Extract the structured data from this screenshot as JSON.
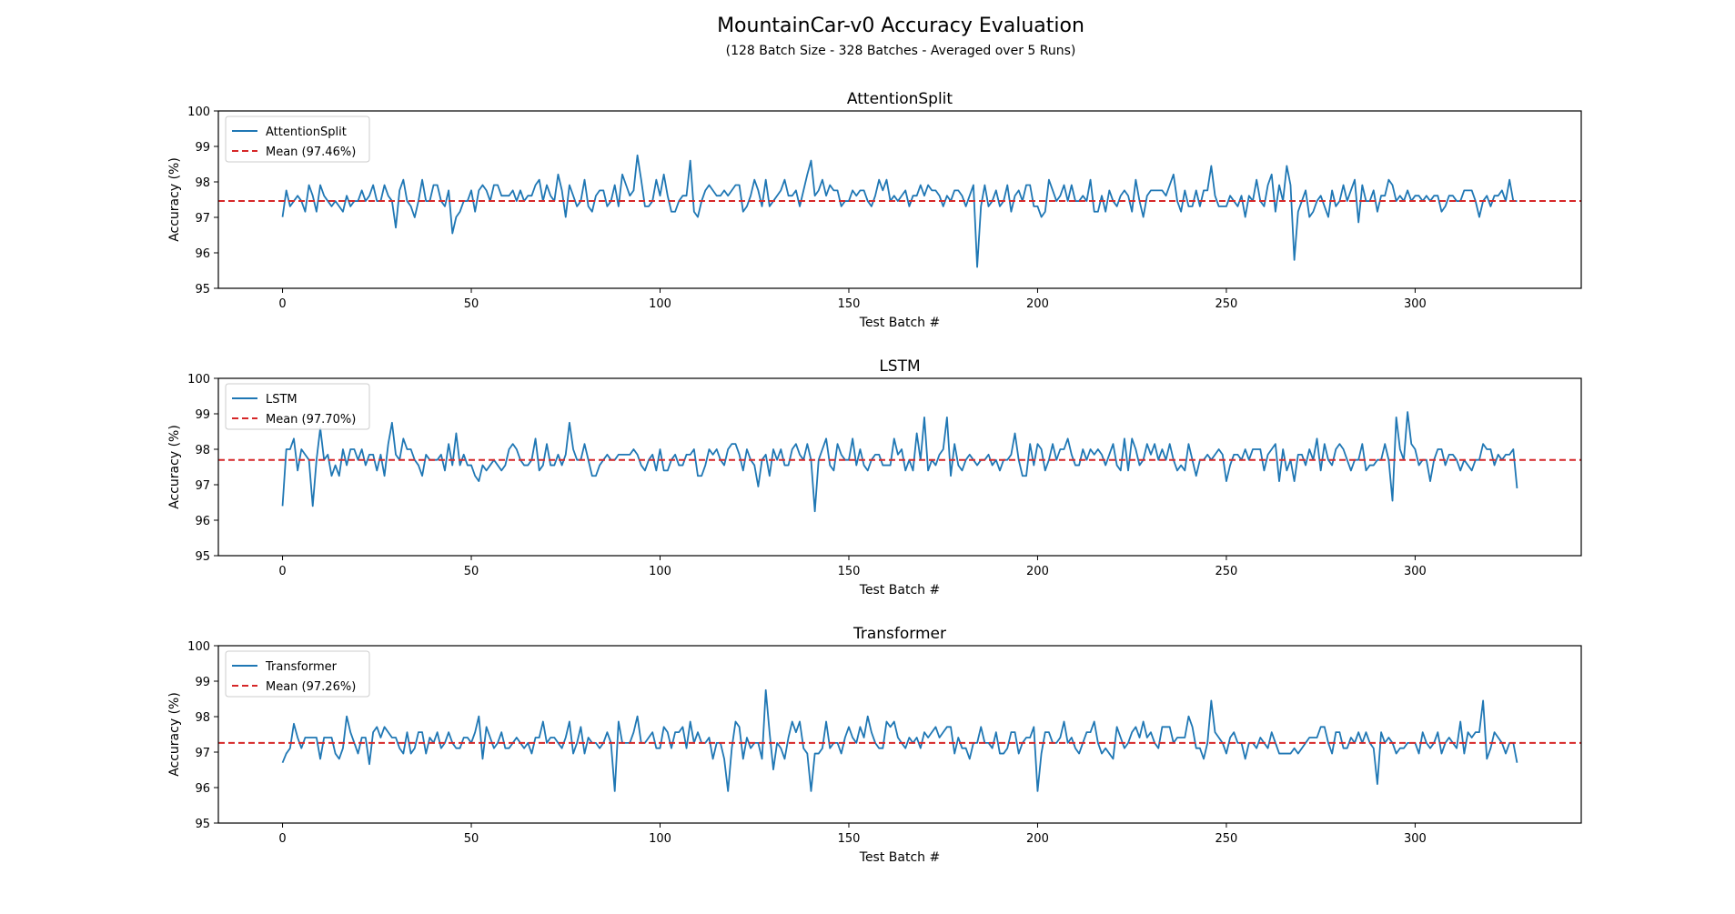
{
  "figure": {
    "title": "MountainCar-v0 Accuracy Evaluation",
    "subtitle": "(128 Batch Size - 328 Batches - Averaged over 5 Runs)"
  },
  "chart_data": [
    {
      "type": "line",
      "title": "AttentionSplit",
      "xlabel": "Test Batch #",
      "ylabel": "Accuracy (%)",
      "xlim": [
        -17,
        344
      ],
      "ylim": [
        95,
        100
      ],
      "xticks": [
        0,
        50,
        100,
        150,
        200,
        250,
        300
      ],
      "yticks": [
        95,
        96,
        97,
        98,
        99,
        100
      ],
      "grid": false,
      "legend": "top-left",
      "series": [
        {
          "name": "AttentionSplit",
          "color": "#1f77b4",
          "line_style": "solid",
          "n_points": 328,
          "y_mean": 97.46,
          "y_min": 95.6,
          "y_max": 98.8,
          "seed": 11,
          "features": [
            [
              94,
              98.75
            ],
            [
              108,
              98.6
            ],
            [
              140,
              98.6
            ],
            [
              184,
              95.6
            ],
            [
              268,
              95.8
            ],
            [
              266,
              98.45
            ],
            [
              246,
              98.45
            ],
            [
              45,
              96.55
            ],
            [
              35,
              97.0
            ]
          ]
        },
        {
          "name": "Mean (97.46%)",
          "color": "#d62728",
          "line_style": "dashed",
          "constant": 97.46
        }
      ]
    },
    {
      "type": "line",
      "title": "LSTM",
      "xlabel": "Test Batch #",
      "ylabel": "Accuracy (%)",
      "xlim": [
        -17,
        344
      ],
      "ylim": [
        95,
        100
      ],
      "xticks": [
        0,
        50,
        100,
        150,
        200,
        250,
        300
      ],
      "yticks": [
        95,
        96,
        97,
        98,
        99,
        100
      ],
      "grid": false,
      "legend": "top-left",
      "series": [
        {
          "name": "LSTM",
          "color": "#1f77b4",
          "line_style": "solid",
          "n_points": 328,
          "y_mean": 97.7,
          "y_min": 96.25,
          "y_max": 99.05,
          "seed": 23,
          "features": [
            [
              0,
              96.4
            ],
            [
              2,
              98.0
            ],
            [
              3,
              98.3
            ],
            [
              8,
              96.4
            ],
            [
              10,
              98.6
            ],
            [
              29,
              98.75
            ],
            [
              76,
              98.75
            ],
            [
              141,
              96.25
            ],
            [
              170,
              98.9
            ],
            [
              176,
              98.9
            ],
            [
              295,
              98.9
            ],
            [
              298,
              99.05
            ],
            [
              294,
              96.55
            ],
            [
              327,
              96.9
            ]
          ]
        },
        {
          "name": "Mean (97.70%)",
          "color": "#d62728",
          "line_style": "dashed",
          "constant": 97.7
        }
      ]
    },
    {
      "type": "line",
      "title": "Transformer",
      "xlabel": "Test Batch #",
      "ylabel": "Accuracy (%)",
      "xlim": [
        -17,
        344
      ],
      "ylim": [
        95,
        100
      ],
      "xticks": [
        0,
        50,
        100,
        150,
        200,
        250,
        300
      ],
      "yticks": [
        95,
        96,
        97,
        98,
        99,
        100
      ],
      "grid": false,
      "legend": "top-left",
      "series": [
        {
          "name": "Transformer",
          "color": "#1f77b4",
          "line_style": "solid",
          "n_points": 328,
          "y_mean": 97.26,
          "y_min": 95.9,
          "y_max": 98.75,
          "seed": 37,
          "features": [
            [
              0,
              96.7
            ],
            [
              3,
              97.8
            ],
            [
              128,
              98.75
            ],
            [
              88,
              95.9
            ],
            [
              118,
              95.9
            ],
            [
              140,
              95.9
            ],
            [
              200,
              95.9
            ],
            [
              246,
              98.45
            ],
            [
              318,
              98.45
            ],
            [
              290,
              96.1
            ],
            [
              327,
              96.7
            ]
          ]
        },
        {
          "name": "Mean (97.26%)",
          "color": "#d62728",
          "line_style": "dashed",
          "constant": 97.26
        }
      ]
    }
  ]
}
